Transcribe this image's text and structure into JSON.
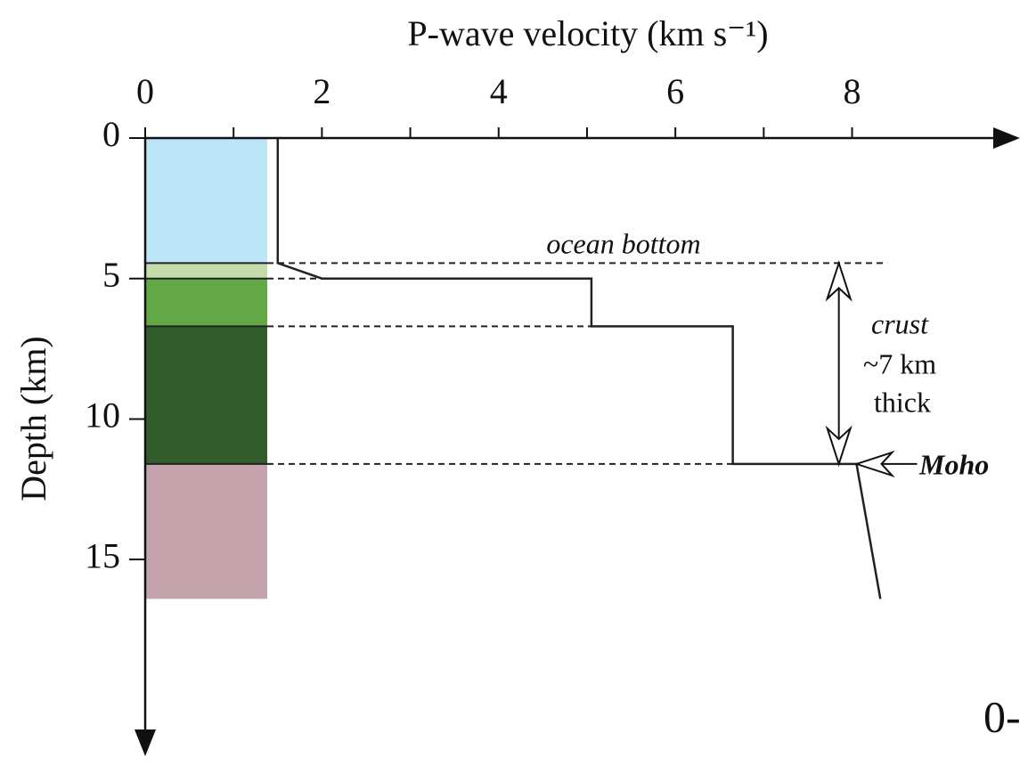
{
  "chart_data": {
    "type": "line",
    "title": "P-wave velocity (km s⁻¹)",
    "ylabel": "Depth (km)",
    "x": [
      1.5,
      1.5,
      2.0,
      5.05,
      5.05,
      6.65,
      6.65,
      8.05,
      8.32
    ],
    "values": [
      0,
      4.45,
      5.0,
      5.0,
      6.7,
      6.7,
      11.6,
      11.6,
      16.4
    ],
    "color": "#222222",
    "xlim": [
      0,
      9.9
    ],
    "ylim": [
      0,
      22
    ],
    "y_inverted": true,
    "xticks": [
      0,
      2,
      4,
      6,
      8
    ],
    "xminorticks": [
      1,
      3,
      5,
      7
    ],
    "yticks": [
      0,
      5,
      10,
      15
    ],
    "layers": [
      {
        "top": 0,
        "bottom": 4.45,
        "color": "#bde5f8"
      },
      {
        "top": 4.45,
        "bottom": 5.0,
        "color": "#c3dcaa"
      },
      {
        "top": 5.0,
        "bottom": 6.7,
        "color": "#62a845"
      },
      {
        "top": 6.7,
        "bottom": 11.6,
        "color": "#335c2c"
      },
      {
        "top": 11.6,
        "bottom": 16.4,
        "color": "#c4a3ad"
      }
    ],
    "boundaries": [
      {
        "depth": 4.45,
        "to": 8.4
      },
      {
        "depth": 5.0,
        "to": 2.0
      },
      {
        "depth": 6.7,
        "to": 5.05
      },
      {
        "depth": 11.6,
        "to": 6.65
      }
    ],
    "annotations": {
      "ocean_bottom": "ocean bottom",
      "crust": "crust",
      "thickness": "~7 km",
      "thick": "thick",
      "moho": "Moho",
      "corner": "0-"
    },
    "crust_arrow": {
      "velocity": 7.85,
      "from": 4.45,
      "to": 11.6
    },
    "moho_arrow": {
      "velocity": 8.05,
      "depth": 11.6
    }
  }
}
